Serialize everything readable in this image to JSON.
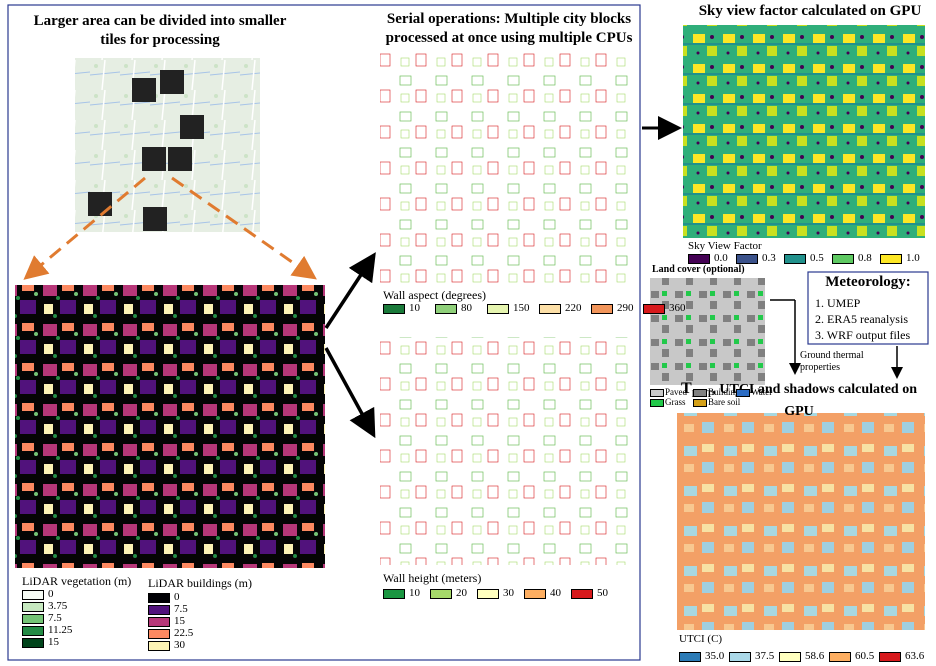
{
  "left_panel": {
    "title": "Larger area can be divided into smaller tiles for processing",
    "vegetation_legend": {
      "title": "LiDAR vegetation (m)",
      "items": [
        {
          "label": "0",
          "color": "#f7fcf5"
        },
        {
          "label": "3.75",
          "color": "#c7e9c0"
        },
        {
          "label": "7.5",
          "color": "#74c476"
        },
        {
          "label": "11.25",
          "color": "#238b45"
        },
        {
          "label": "15",
          "color": "#00441b"
        }
      ]
    },
    "buildings_legend": {
      "title": "LiDAR buildings (m)",
      "items": [
        {
          "label": "0",
          "color": "#000004"
        },
        {
          "label": "7.5",
          "color": "#51127c"
        },
        {
          "label": "15",
          "color": "#b73779"
        },
        {
          "label": "22.5",
          "color": "#fc8961"
        },
        {
          "label": "30",
          "color": "#fcf3b5"
        }
      ]
    }
  },
  "middle_panel": {
    "title": "Serial operations: Multiple city blocks processed at once using multiple CPUs",
    "wall_aspect": {
      "title": "Wall aspect (degrees)",
      "items": [
        {
          "label": "10",
          "color": "#1a7a3a"
        },
        {
          "label": "80",
          "color": "#8fd07a"
        },
        {
          "label": "150",
          "color": "#e6f5b0"
        },
        {
          "label": "220",
          "color": "#fde0a8"
        },
        {
          "label": "290",
          "color": "#f2955a"
        },
        {
          "label": "360",
          "color": "#d7191c"
        }
      ]
    },
    "wall_height": {
      "title": "Wall height (meters)",
      "items": [
        {
          "label": "10",
          "color": "#1a9641"
        },
        {
          "label": "20",
          "color": "#a6d96a"
        },
        {
          "label": "30",
          "color": "#ffffbf"
        },
        {
          "label": "40",
          "color": "#fdae61"
        },
        {
          "label": "50",
          "color": "#d7191c"
        }
      ]
    }
  },
  "sky_view": {
    "title": "Sky view factor calculated on GPU",
    "legend_title": "Sky View Factor",
    "items": [
      {
        "label": "0.0",
        "color": "#440154"
      },
      {
        "label": "0.3",
        "color": "#3b528b"
      },
      {
        "label": "0.5",
        "color": "#21918c"
      },
      {
        "label": "0.8",
        "color": "#5ec962"
      },
      {
        "label": "1.0",
        "color": "#fde725"
      }
    ]
  },
  "land_cover": {
    "title": "Land cover (optional)",
    "items": [
      {
        "label": "Paved",
        "color": "#c8c8c8"
      },
      {
        "label": "Buildings",
        "color": "#808080"
      },
      {
        "label": "Water",
        "color": "#2b6cc4"
      },
      {
        "label": "Grass",
        "color": "#22c94a"
      },
      {
        "label": "Bare soil",
        "color": "#d4a017"
      }
    ]
  },
  "meteorology": {
    "title": "Meteorology:",
    "items": [
      "1. UMEP",
      "2. ERA5 reanalysis",
      "3. WRF output files"
    ]
  },
  "ground_note": "Ground thermal properties",
  "output": {
    "title_symbol": "T",
    "title_subscript": "MRT",
    "title_rest": ", UTCI and shadows calculated on GPU",
    "legend_title": "UTCI (C)",
    "items": [
      {
        "label": "35.0",
        "color": "#2c7bb6"
      },
      {
        "label": "37.5",
        "color": "#abd9e9"
      },
      {
        "label": "58.6",
        "color": "#ffffbf"
      },
      {
        "label": "60.5",
        "color": "#fdae61"
      },
      {
        "label": "63.6",
        "color": "#d7191c"
      }
    ]
  }
}
